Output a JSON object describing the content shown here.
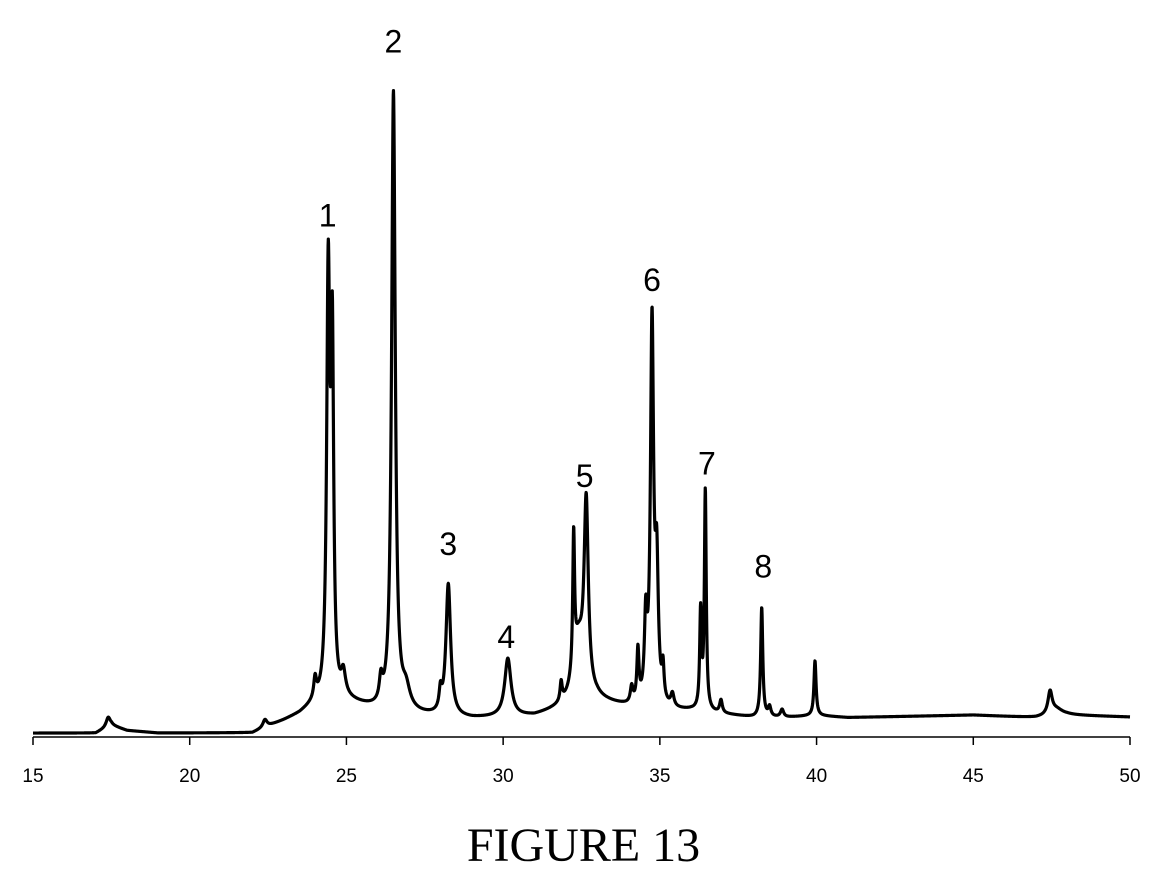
{
  "caption": "FIGURE 13",
  "colors": {
    "trace": "#000000",
    "axis": "#000000",
    "background": "#ffffff"
  },
  "chart_data": {
    "type": "line",
    "title": "",
    "xlabel": "",
    "ylabel": "",
    "xlim": [
      15,
      50
    ],
    "ylim": [
      0,
      100
    ],
    "grid": false,
    "legend": "none",
    "xticks": [
      15,
      20,
      25,
      30,
      35,
      40,
      45,
      50
    ],
    "xtick_labels": [
      "15",
      "20",
      "25",
      "30",
      "35",
      "40",
      "45",
      "50"
    ],
    "baseline": [
      [
        15.0,
        0.6
      ],
      [
        17.0,
        0.6
      ],
      [
        17.5,
        1.8
      ],
      [
        18.0,
        1.0
      ],
      [
        19.0,
        0.6
      ],
      [
        22.0,
        0.6
      ],
      [
        22.5,
        1.6
      ],
      [
        23.0,
        2.5
      ],
      [
        23.5,
        3.5
      ],
      [
        24.0,
        5.0
      ],
      [
        25.0,
        5.5
      ],
      [
        26.0,
        4.0
      ],
      [
        27.0,
        3.5
      ],
      [
        28.0,
        3.0
      ],
      [
        29.0,
        2.8
      ],
      [
        30.0,
        3.0
      ],
      [
        31.0,
        3.2
      ],
      [
        32.0,
        4.5
      ],
      [
        33.0,
        5.5
      ],
      [
        34.0,
        4.5
      ],
      [
        35.0,
        4.0
      ],
      [
        36.0,
        4.0
      ],
      [
        37.0,
        3.5
      ],
      [
        38.0,
        3.0
      ],
      [
        39.0,
        3.0
      ],
      [
        40.0,
        3.3
      ],
      [
        41.0,
        3.0
      ],
      [
        45.0,
        3.4
      ],
      [
        47.0,
        3.0
      ],
      [
        48.0,
        3.4
      ],
      [
        50.0,
        3.1
      ]
    ],
    "peaks": [
      {
        "x": 17.4,
        "height": 1.5,
        "width": 0.08
      },
      {
        "x": 22.4,
        "height": 1.2,
        "width": 0.08
      },
      {
        "x": 24.0,
        "height": 3.0,
        "width": 0.05
      },
      {
        "x": 24.42,
        "height": 65.0,
        "width": 0.06
      },
      {
        "x": 24.55,
        "height": 52.0,
        "width": 0.05
      },
      {
        "x": 24.9,
        "height": 3.5,
        "width": 0.08
      },
      {
        "x": 26.1,
        "height": 3.5,
        "width": 0.06
      },
      {
        "x": 26.5,
        "height": 96.0,
        "width": 0.07
      },
      {
        "x": 26.9,
        "height": 3.0,
        "width": 0.15
      },
      {
        "x": 28.0,
        "height": 3.0,
        "width": 0.05
      },
      {
        "x": 28.25,
        "height": 20.5,
        "width": 0.09
      },
      {
        "x": 30.15,
        "height": 9.0,
        "width": 0.12
      },
      {
        "x": 31.85,
        "height": 3.0,
        "width": 0.04
      },
      {
        "x": 32.25,
        "height": 21.0,
        "width": 0.035
      },
      {
        "x": 32.4,
        "height": 9.0,
        "width": 0.2
      },
      {
        "x": 32.65,
        "height": 29.0,
        "width": 0.08
      },
      {
        "x": 34.1,
        "height": 2.5,
        "width": 0.05
      },
      {
        "x": 34.3,
        "height": 8.0,
        "width": 0.04
      },
      {
        "x": 34.55,
        "height": 12.0,
        "width": 0.05
      },
      {
        "x": 34.75,
        "height": 59.0,
        "width": 0.06
      },
      {
        "x": 34.9,
        "height": 20.0,
        "width": 0.06
      },
      {
        "x": 35.1,
        "height": 5.0,
        "width": 0.04
      },
      {
        "x": 35.4,
        "height": 2.0,
        "width": 0.06
      },
      {
        "x": 36.3,
        "height": 15.0,
        "width": 0.035
      },
      {
        "x": 36.45,
        "height": 34.0,
        "width": 0.035
      },
      {
        "x": 36.95,
        "height": 2.0,
        "width": 0.05
      },
      {
        "x": 38.25,
        "height": 17.0,
        "width": 0.04
      },
      {
        "x": 38.5,
        "height": 1.5,
        "width": 0.05
      },
      {
        "x": 38.9,
        "height": 1.2,
        "width": 0.06
      },
      {
        "x": 39.95,
        "height": 8.5,
        "width": 0.04
      },
      {
        "x": 47.45,
        "height": 3.5,
        "width": 0.08
      },
      {
        "x": 47.65,
        "height": 1.0,
        "width": 0.25
      }
    ],
    "annotations": [
      {
        "label": "1",
        "x": 24.4,
        "y": 81.0
      },
      {
        "label": "2",
        "x": 26.5,
        "y": 108.0
      },
      {
        "label": "3",
        "x": 28.25,
        "y": 30.0
      },
      {
        "label": "4",
        "x": 30.1,
        "y": 15.5
      },
      {
        "label": "5",
        "x": 32.6,
        "y": 40.5
      },
      {
        "label": "6",
        "x": 34.75,
        "y": 71.0
      },
      {
        "label": "7",
        "x": 36.5,
        "y": 42.5
      },
      {
        "label": "8",
        "x": 38.3,
        "y": 26.5
      }
    ]
  }
}
